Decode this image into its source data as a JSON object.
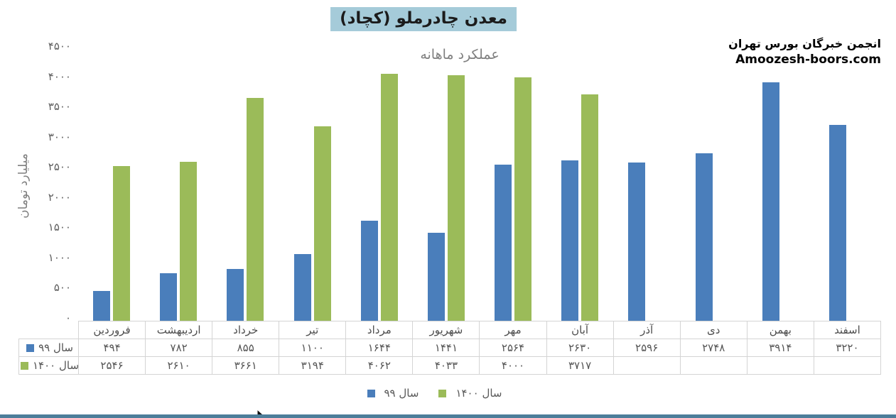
{
  "title": "معدن چادرملو (کچاد)",
  "subtitle": "عملکرد ماهانه",
  "branding": {
    "line1": "انجمن خبرگان بورس تهران",
    "line2": "Amoozesh-boors.com"
  },
  "y_axis": {
    "title": "میلیارد تومان",
    "ticks": [
      {
        "value": 4500,
        "label": "۴۵۰۰"
      },
      {
        "value": 4000,
        "label": "۴۰۰۰"
      },
      {
        "value": 3500,
        "label": "۳۵۰۰"
      },
      {
        "value": 3000,
        "label": "۳۰۰۰"
      },
      {
        "value": 2500,
        "label": "۲۵۰۰"
      },
      {
        "value": 2000,
        "label": "۲۰۰۰"
      },
      {
        "value": 1500,
        "label": "۱۵۰۰"
      },
      {
        "value": 1000,
        "label": "۱۰۰۰"
      },
      {
        "value": 500,
        "label": "۵۰۰"
      },
      {
        "value": 0,
        "label": "۰"
      }
    ]
  },
  "chart_data": {
    "type": "bar",
    "title": "معدن چادرملو (کچاد)",
    "subtitle": "عملکرد ماهانه",
    "xlabel": "",
    "ylabel": "میلیارد تومان",
    "ylim": [
      0,
      4500
    ],
    "grid": false,
    "legend_position": "bottom",
    "categories": [
      "فروردین",
      "اردیبهشت",
      "خرداد",
      "تیر",
      "مرداد",
      "شهریور",
      "مهر",
      "آبان",
      "آذر",
      "دی",
      "بهمن",
      "اسفند"
    ],
    "series": [
      {
        "name": "سال ۹۹",
        "color": "#4a7ebb",
        "values": [
          494,
          782,
          855,
          1100,
          1644,
          1441,
          2564,
          2630,
          2596,
          2748,
          3914,
          3220
        ],
        "labels": [
          "۴۹۴",
          "۷۸۲",
          "۸۵۵",
          "۱۱۰۰",
          "۱۶۴۴",
          "۱۴۴۱",
          "۲۵۶۴",
          "۲۶۳۰",
          "۲۵۹۶",
          "۲۷۴۸",
          "۳۹۱۴",
          "۳۲۲۰"
        ]
      },
      {
        "name": "سال ۱۴۰۰",
        "color": "#9bbb59",
        "values": [
          2546,
          2610,
          3661,
          3194,
          4062,
          4033,
          4000,
          3717,
          null,
          null,
          null,
          null
        ],
        "labels": [
          "۲۵۴۶",
          "۲۶۱۰",
          "۳۶۶۱",
          "۳۱۹۴",
          "۴۰۶۲",
          "۴۰۳۳",
          "۴۰۰۰",
          "۳۷۱۷",
          "",
          "",
          "",
          ""
        ]
      }
    ]
  },
  "legend": {
    "items": [
      {
        "label": "سال ۹۹",
        "color": "#4a7ebb"
      },
      {
        "label": "سال ۱۴۰۰",
        "color": "#9bbb59"
      }
    ]
  },
  "colors": {
    "year99": "#4a7ebb",
    "year1400": "#9bbb59",
    "title_highlight": "#a5cbd9",
    "table_border": "#d4d4d4",
    "muted_text": "#7f7f7f",
    "bottom_strip": "#4d7e9a"
  }
}
